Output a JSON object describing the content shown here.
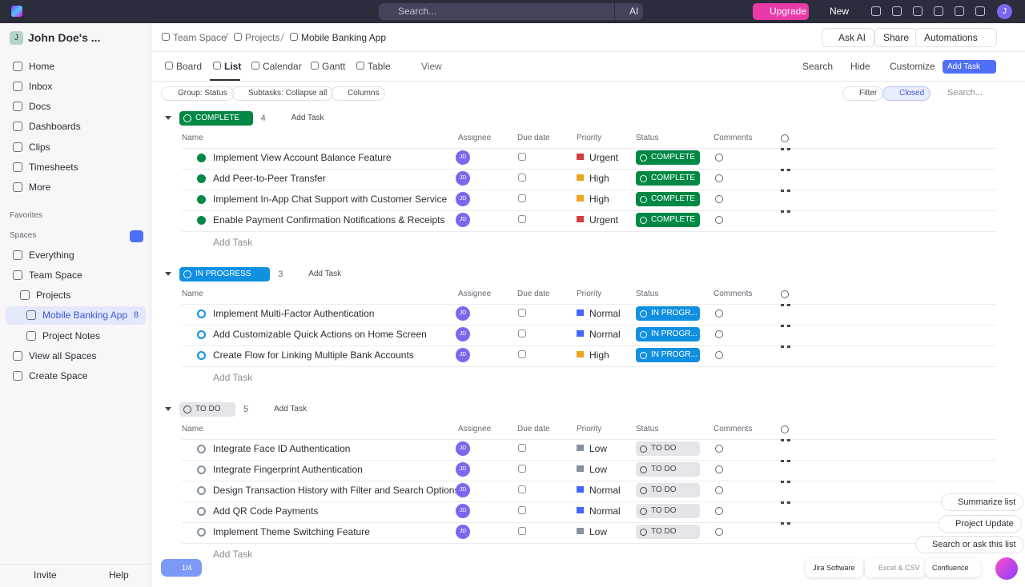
{
  "topbar": {
    "search": "Search...",
    "ai": "AI",
    "upgrade": "Upgrade",
    "new": "New",
    "avatar": "J"
  },
  "sidebar": {
    "workspace_avatar": "J",
    "workspace": "John Doe's ...",
    "nav": [
      "Home",
      "Inbox",
      "Docs",
      "Dashboards",
      "Clips",
      "Timesheets",
      "More"
    ],
    "favorites": "Favorites",
    "spaces": "Spaces",
    "tree": [
      "Everything",
      "Team Space",
      "Projects",
      "Mobile Banking App",
      "Project Notes",
      "View all Spaces",
      "Create Space"
    ],
    "active_count": 8,
    "invite": "Invite",
    "help": "Help"
  },
  "header": {
    "breadcrumb": [
      "Team Space",
      "Projects",
      "Mobile Banking App"
    ],
    "ask_ai": "Ask AI",
    "share": "Share",
    "automations": "Automations"
  },
  "views": {
    "tabs": [
      "Board",
      "List",
      "Calendar",
      "Gantt",
      "Table"
    ],
    "add_view": "View",
    "search": "Search",
    "hide": "Hide",
    "customize": "Customize",
    "add_task": "Add Task"
  },
  "toolbar": {
    "group": "Group: Status",
    "subtasks": "Subtasks: Collapse all",
    "columns": "Columns",
    "filter": "Filter",
    "closed": "Closed",
    "search": "Search..."
  },
  "columns": [
    "Name",
    "Assignee",
    "Due date",
    "Priority",
    "Status",
    "Comments"
  ],
  "groups": [
    {
      "status": "COMPLETE",
      "color": "#008844",
      "text_color": "#ffffff",
      "count": 4,
      "add_task": "Add Task",
      "new_task": "Add Task",
      "tasks": [
        {
          "name": "Implement View Account Balance Feature",
          "assignee": "JD",
          "priority": "Urgent",
          "flag": "#d33d44",
          "status": "COMPLETE"
        },
        {
          "name": "Add Peer-to-Peer Transfer",
          "assignee": "JD",
          "priority": "High",
          "flag": "#f0a220",
          "status": "COMPLETE"
        },
        {
          "name": "Implement In-App Chat Support with Customer Service",
          "assignee": "JD",
          "priority": "High",
          "flag": "#f0a220",
          "status": "COMPLETE"
        },
        {
          "name": "Enable Payment Confirmation Notifications & Receipts",
          "assignee": "JD",
          "priority": "Urgent",
          "flag": "#d33d44",
          "status": "COMPLETE"
        }
      ]
    },
    {
      "status": "IN PROGRESS",
      "color": "#1090e0",
      "text_color": "#ffffff",
      "count": 3,
      "add_task": "Add Task",
      "new_task": "Add Task",
      "tasks": [
        {
          "name": "Implement Multi-Factor Authentication",
          "assignee": "JD",
          "priority": "Normal",
          "flag": "#4466ff",
          "status": "IN PROGR..."
        },
        {
          "name": "Add Customizable Quick Actions on Home Screen",
          "assignee": "JD",
          "priority": "Normal",
          "flag": "#4466ff",
          "status": "IN PROGR..."
        },
        {
          "name": "Create Flow for Linking Multiple Bank Accounts",
          "assignee": "JD",
          "priority": "High",
          "flag": "#f0a220",
          "status": "IN PROGR..."
        }
      ]
    },
    {
      "status": "TO DO",
      "color": "#e4e5e8",
      "text_color": "#46474c",
      "count": 5,
      "add_task": "Add Task",
      "new_task": "Add Task",
      "tasks": [
        {
          "name": "Integrate Face ID Authentication",
          "assignee": "JD",
          "priority": "Low",
          "flag": "#87909e",
          "status": "TO DO"
        },
        {
          "name": "Integrate Fingerprint Authentication",
          "assignee": "JD",
          "priority": "Low",
          "flag": "#87909e",
          "status": "TO DO"
        },
        {
          "name": "Design Transaction History with Filter and Search Options",
          "assignee": "JD",
          "priority": "Normal",
          "flag": "#4466ff",
          "status": "TO DO"
        },
        {
          "name": "Add QR Code Payments",
          "assignee": "JD",
          "priority": "Normal",
          "flag": "#4466ff",
          "status": "TO DO"
        },
        {
          "name": "Implement Theme Switching Feature",
          "assignee": "JD",
          "priority": "Low",
          "flag": "#87909e",
          "status": "TO DO"
        }
      ]
    }
  ],
  "assistant": {
    "actions": [
      "Summarize list",
      "Project Update",
      "Search or ask this list"
    ],
    "integrations": [
      "Jira Software",
      "Excel & CSV",
      "Confluence"
    ],
    "onboarding": "1/4"
  }
}
